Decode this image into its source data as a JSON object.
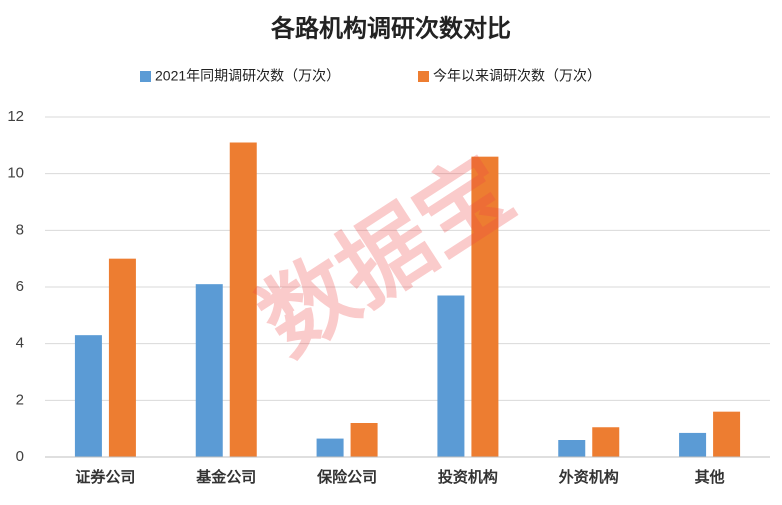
{
  "chart_data": {
    "type": "bar",
    "title": "各路机构调研次数对比",
    "categories": [
      "证券公司",
      "基金公司",
      "保险公司",
      "投资机构",
      "外资机构",
      "其他"
    ],
    "series": [
      {
        "name": "2021年同期调研次数（万次）",
        "color": "#5b9bd5",
        "values": [
          4.3,
          6.1,
          0.65,
          5.7,
          0.6,
          0.85
        ]
      },
      {
        "name": "今年以来调研次数（万次）",
        "color": "#ed7d31",
        "values": [
          7.0,
          11.1,
          1.2,
          10.6,
          1.05,
          1.6
        ]
      }
    ],
    "ylim": [
      0,
      12
    ],
    "yticks": [
      0,
      2,
      4,
      6,
      8,
      10,
      12
    ],
    "grid": true,
    "legend": "top",
    "watermark": "数据宝"
  }
}
